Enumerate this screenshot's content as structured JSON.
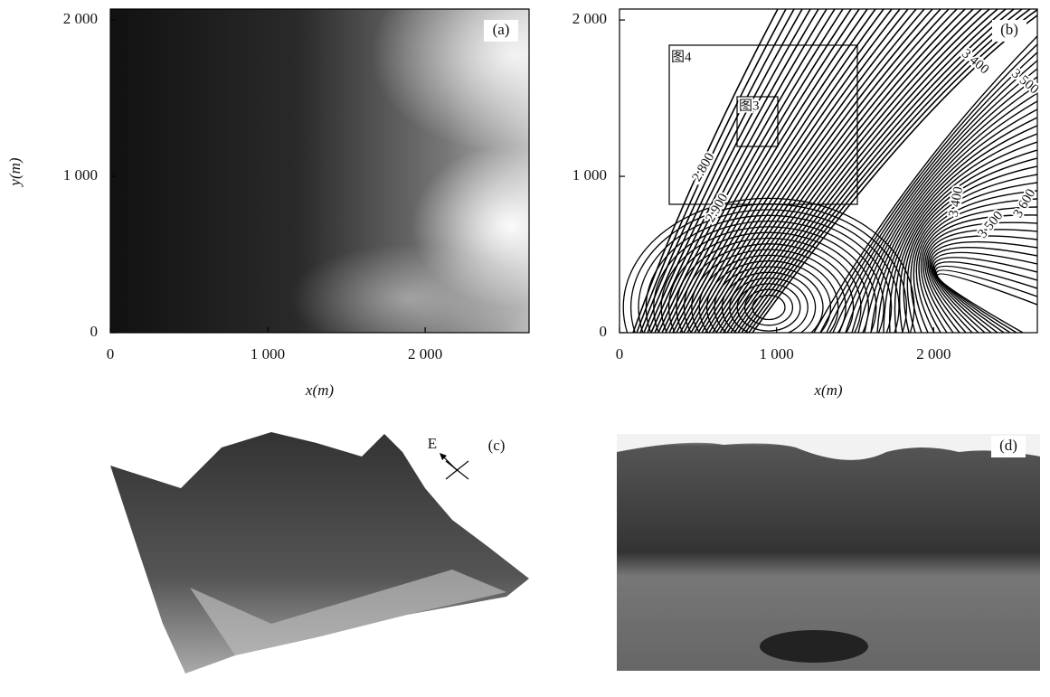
{
  "chart_data": [
    {
      "type": "heatmap",
      "panel_label": "(a)",
      "xlabel": "x(m)",
      "ylabel": "y(m)",
      "xlim": [
        0,
        2660
      ],
      "ylim": [
        0,
        2070
      ],
      "xticks": [
        0,
        {
          "value": 1000,
          "label": "1 000"
        },
        {
          "value": 2000,
          "label": "2 000"
        }
      ],
      "yticks": [
        0,
        {
          "value": 1000,
          "label": "1 000"
        },
        {
          "value": 2000,
          "label": "2 000"
        }
      ]
    },
    {
      "type": "contour",
      "panel_label": "(b)",
      "xlabel": "x(m)",
      "xlim": [
        0,
        2660
      ],
      "ylim": [
        0,
        2070
      ],
      "xticks": [
        0,
        {
          "value": 1000,
          "label": "1 000"
        },
        {
          "value": 2000,
          "label": "2 000"
        }
      ],
      "yticks": [
        0,
        {
          "value": 1000,
          "label": "1 000"
        },
        {
          "value": 2000,
          "label": "2 000"
        }
      ],
      "annotations": [
        "图4",
        "图3",
        "3 400",
        "3 500",
        "2 800",
        "2 900",
        "3 400",
        "3 600",
        "3 500"
      ]
    }
  ],
  "panels": [
    {
      "label": "(c)",
      "compass": "E"
    },
    {
      "label": "(d)"
    }
  ]
}
